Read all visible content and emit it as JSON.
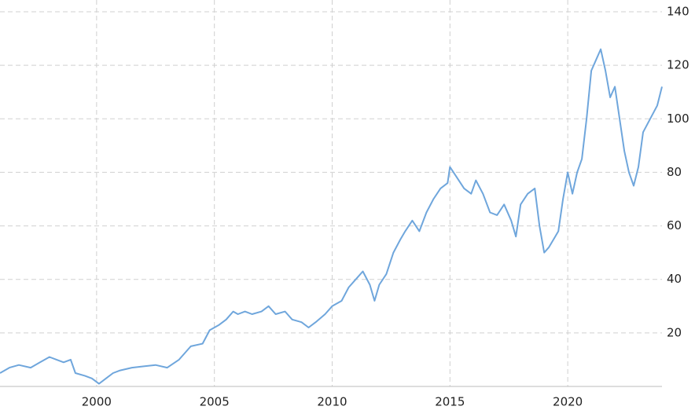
{
  "chart_data": {
    "type": "line",
    "x": [
      1995.9,
      1996.3,
      1996.7,
      1997.2,
      1997.6,
      1998.0,
      1998.3,
      1998.6,
      1998.9,
      1999.1,
      1999.5,
      1999.8,
      2000.1,
      2000.4,
      2000.7,
      2001.0,
      2001.5,
      2002.0,
      2002.5,
      2003.0,
      2003.5,
      2004.0,
      2004.5,
      2004.8,
      2005.2,
      2005.5,
      2005.8,
      2006.0,
      2006.3,
      2006.6,
      2007.0,
      2007.3,
      2007.6,
      2008.0,
      2008.3,
      2008.7,
      2009.0,
      2009.3,
      2009.7,
      2010.0,
      2010.4,
      2010.7,
      2011.0,
      2011.3,
      2011.6,
      2011.8,
      2012.0,
      2012.3,
      2012.6,
      2012.9,
      2013.1,
      2013.4,
      2013.7,
      2014.0,
      2014.3,
      2014.6,
      2014.9,
      2015.0,
      2015.3,
      2015.6,
      2015.9,
      2016.1,
      2016.4,
      2016.7,
      2017.0,
      2017.3,
      2017.6,
      2017.8,
      2018.0,
      2018.3,
      2018.6,
      2018.8,
      2019.0,
      2019.2,
      2019.4,
      2019.6,
      2019.8,
      2020.0,
      2020.2,
      2020.4,
      2020.6,
      2020.8,
      2021.0,
      2021.2,
      2021.4,
      2021.6,
      2021.8,
      2022.0,
      2022.2,
      2022.4,
      2022.6,
      2022.8,
      2023.0,
      2023.2,
      2023.5,
      2023.8,
      2024.0
    ],
    "series": [
      {
        "color": "#6fa6dc",
        "values": [
          5,
          7,
          8,
          7,
          9,
          11,
          10,
          9,
          10,
          5,
          4,
          3,
          1,
          3,
          5,
          6,
          7,
          7.5,
          8,
          7,
          10,
          15,
          16,
          21,
          23,
          25,
          28,
          27,
          28,
          27,
          28,
          30,
          27,
          28,
          25,
          24,
          22,
          24,
          27,
          30,
          32,
          37,
          40,
          43,
          38,
          32,
          38,
          42,
          50,
          55,
          58,
          62,
          58,
          65,
          70,
          74,
          76,
          82,
          78,
          74,
          72,
          77,
          72,
          65,
          64,
          68,
          62,
          56,
          68,
          72,
          74,
          60,
          50,
          52,
          55,
          58,
          70,
          80,
          72,
          80,
          85,
          100,
          118,
          122,
          126,
          118,
          108,
          112,
          100,
          88,
          80,
          75,
          82,
          95,
          100,
          105,
          112
        ]
      }
    ],
    "xlim": [
      1995.9,
      2024
    ],
    "xticks": [
      2000,
      2005,
      2010,
      2015,
      2020
    ],
    "ylim": [
      0,
      140
    ],
    "yticks": [
      20,
      40,
      60,
      80,
      100,
      120,
      140
    ],
    "grid": true
  }
}
